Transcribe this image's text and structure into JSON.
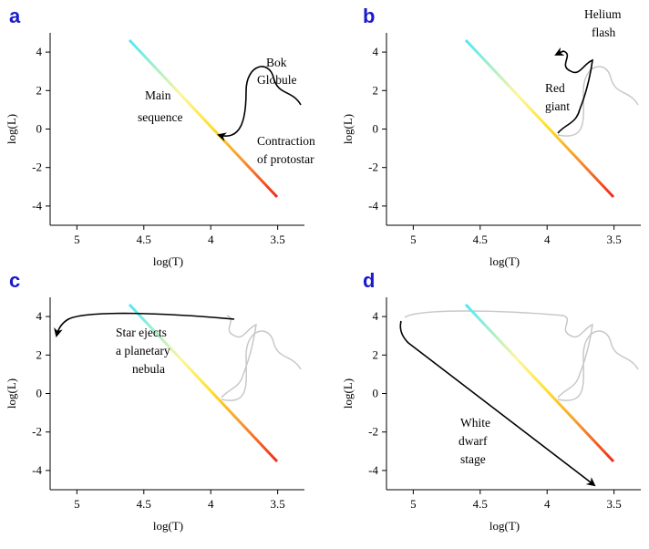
{
  "panels": [
    {
      "letter": "a",
      "annotations": [
        {
          "lines": [
            "Bok",
            "Globule"
          ]
        },
        {
          "lines": [
            "Main",
            "sequence"
          ]
        },
        {
          "lines": [
            "Contraction",
            "of protostar"
          ]
        }
      ]
    },
    {
      "letter": "b",
      "annotations": [
        {
          "lines": [
            "Helium",
            "flash"
          ]
        },
        {
          "lines": [
            "Red",
            "giant"
          ]
        }
      ]
    },
    {
      "letter": "c",
      "annotations": [
        {
          "lines": [
            "Star ejects",
            "a planetary",
            "nebula"
          ]
        }
      ]
    },
    {
      "letter": "d",
      "annotations": [
        {
          "lines": [
            "White",
            "dwarf",
            "stage"
          ]
        }
      ]
    }
  ],
  "axes": {
    "xlabel": "log(T)",
    "ylabel": "log(L)",
    "x_ticks": [
      "5",
      "4.5",
      "4",
      "3.5"
    ],
    "y_ticks": [
      "4",
      "2",
      "0",
      "-2",
      "-4"
    ],
    "x_range": [
      5.2,
      3.3
    ],
    "y_range": [
      -5,
      5
    ]
  },
  "main_sequence": {
    "from": {
      "logT": 4.58,
      "logL": 4.7
    },
    "to": {
      "logT": 3.53,
      "logL": -3.1
    },
    "colors": [
      "#4ee8f8",
      "#fff59a",
      "#ffe027",
      "#f79a2d",
      "#ef2a1c"
    ]
  },
  "colors": {
    "path": "#000000",
    "faded_path": "#c8c8c8",
    "letter": "#1a1acc"
  }
}
